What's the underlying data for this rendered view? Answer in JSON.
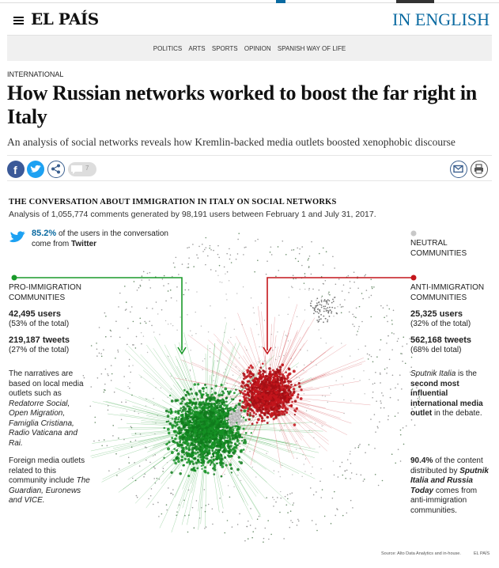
{
  "header": {
    "logo": "EL PAÍS",
    "language": "IN ENGLISH"
  },
  "nav": {
    "items": [
      "POLITICS",
      "ARTS",
      "SPORTS",
      "OPINION",
      "SPANISH WAY OF LIFE"
    ]
  },
  "article": {
    "section": "INTERNATIONAL",
    "title": "How Russian networks worked to boost the far right in Italy",
    "subtitle": "An analysis of social networks reveals how Kremlin-backed media outlets boosted xenophobic discourse",
    "comment_count": "7"
  },
  "colors": {
    "green": "#1a9a2a",
    "red": "#c4161c",
    "twitter": "#1da1f2",
    "brand_blue": "#0a6aa1"
  },
  "graphic": {
    "title": "THE CONVERSATION ABOUT IMMIGRATION IN ITALY ON SOCIAL NETWORKS",
    "subtitle": "Analysis of 1,055,774 comments generated by 98,191 users between February 1 and July 31, 2017.",
    "twitter_pct": "85.2%",
    "twitter_text": " of the users in the conversation come from ",
    "twitter_word": "Twitter",
    "neutral_label": "NEUTRAL COMMUNITIES",
    "pro": {
      "label": "PRO-IMMIGRATION COMMUNITIES",
      "users": "42,495 users",
      "users_share": "(53% of the total)",
      "tweets": "219,187 tweets",
      "tweets_share": "(27% of the total)",
      "narr_lead": "The narratives are based on local media outlets such as ",
      "narr_outlets": "Redatorre Social, Open Migration, Famiglia Cristiana, Radio Vaticana and Rai.",
      "foreign_lead": "Foreign media outlets related to this community include ",
      "foreign_outlets": "The Guardian, Euronews and VICE."
    },
    "anti": {
      "label": "ANTI-IMMIGRATION COMMUNITIES",
      "users": "25,325 users",
      "users_share": "(32% of the total)",
      "tweets": "562,168 tweets",
      "tweets_share": "(68% del total)",
      "sputnik": "Sputnik Italia",
      "sputnik_is": " is the ",
      "sputnik_rank": "second most influential international media outlet",
      "sputnik_tail": " in the debate.",
      "share_pct": "90.4%",
      "share_text": " of the content distributed by ",
      "outlets": "Sputnik Italia and Russia Today",
      "share_tail": " comes from anti-immigration communities."
    },
    "source": "Source: Alto Data Analytics and in-house.",
    "brand": "EL PAÍS"
  }
}
